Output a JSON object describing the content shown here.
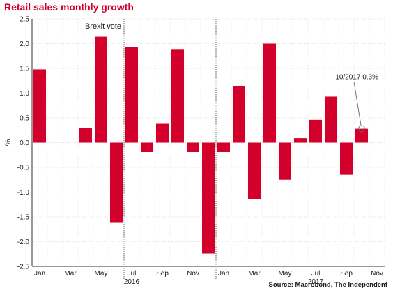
{
  "chart_data": {
    "type": "bar",
    "title": "Retail sales monthly growth",
    "ylabel": "%",
    "ylim": [
      -2.5,
      2.5
    ],
    "yticks": [
      2.5,
      2.0,
      1.5,
      1.0,
      0.5,
      0.0,
      -0.5,
      -1.0,
      -1.5,
      -2.0,
      -2.5
    ],
    "ytick_labels": [
      "2.5",
      "2.0",
      "1.5",
      "1.0",
      "0.5",
      "0.0",
      "-0.5",
      "-1.0",
      "-1.5",
      "-2.0",
      "-2.5"
    ],
    "categories": [
      "2016-01",
      "2016-02",
      "2016-03",
      "2016-04",
      "2016-05",
      "2016-06",
      "2016-07",
      "2016-08",
      "2016-09",
      "2016-10",
      "2016-11",
      "2016-12",
      "2017-01",
      "2017-02",
      "2017-03",
      "2017-04",
      "2017-05",
      "2017-06",
      "2017-07",
      "2017-08",
      "2017-09",
      "2017-10",
      "2017-11"
    ],
    "values": [
      1.48,
      0.0,
      0.0,
      0.29,
      2.14,
      -1.62,
      1.93,
      -0.19,
      0.38,
      1.89,
      -0.19,
      -2.24,
      -0.19,
      1.14,
      -1.14,
      2.0,
      -0.75,
      0.09,
      0.46,
      0.93,
      -0.65,
      0.28,
      0.0
    ],
    "month_labels": [
      "Jan",
      "",
      "Mar",
      "",
      "May",
      "",
      "Jul",
      "",
      "Sep",
      "",
      "Nov",
      "",
      "Jan",
      "",
      "Mar",
      "",
      "May",
      "",
      "Jul",
      "",
      "Sep",
      "",
      "Nov"
    ],
    "year_labels": [
      {
        "at": "2016-07",
        "text": "2016"
      },
      {
        "at": "2017-07",
        "text": "2017"
      }
    ],
    "events": [
      {
        "after": "2016-06",
        "label": "Brexit vote",
        "style": "dotted"
      },
      {
        "after": "2016-12",
        "label": "",
        "style": "dotted"
      }
    ],
    "annotation": {
      "point": "2017-10",
      "text": "10/2017  0.3%"
    },
    "grid": true,
    "legend": "none"
  },
  "colors": {
    "bar": "#d4002c",
    "title": "#d4002c",
    "grid": "#dcdcdc",
    "axis": "#333333",
    "text": "#1a1a1a"
  },
  "source": "Source: Macrobond, The Independent"
}
